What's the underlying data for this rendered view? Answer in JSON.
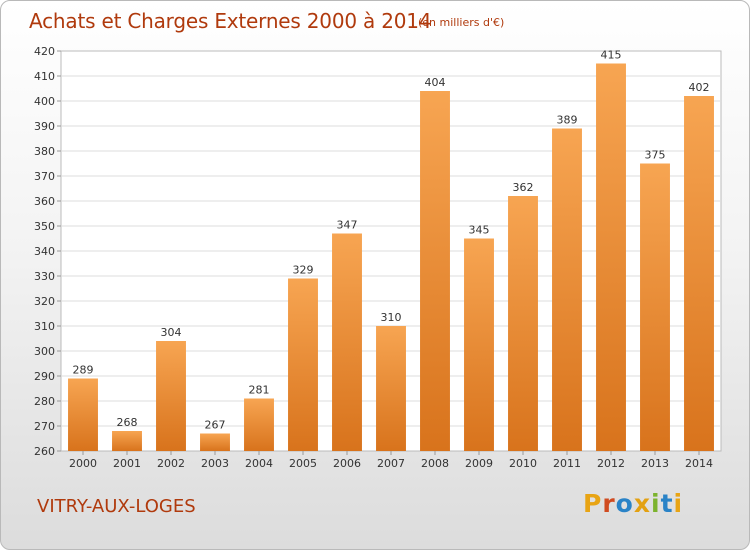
{
  "header": {
    "title": "Achats et Charges Externes 2000 à 2014",
    "unit": "(en milliers d'€)"
  },
  "footer": {
    "commune": "VITRY-AUX-LOGES",
    "logo": "Proxiti"
  },
  "colors": {
    "title": "#b03a0d",
    "bar_light": "#f7a552",
    "bar_dark": "#d8731c",
    "logo_letters": [
      "#e8a414",
      "#d04b20",
      "#2a83c7",
      "#e3a112",
      "#7cb32e",
      "#2a83c7",
      "#e8a414"
    ]
  },
  "chart_data": {
    "type": "bar",
    "title": "Achats et Charges Externes 2000 à 2014",
    "subtitle": "(en milliers d'€)",
    "xlabel": "",
    "ylabel": "",
    "categories": [
      "2000",
      "2001",
      "2002",
      "2003",
      "2004",
      "2005",
      "2006",
      "2007",
      "2008",
      "2009",
      "2010",
      "2011",
      "2012",
      "2013",
      "2014"
    ],
    "values": [
      289,
      268,
      304,
      267,
      281,
      329,
      347,
      310,
      404,
      345,
      362,
      389,
      415,
      375,
      402
    ],
    "ylim": [
      260,
      420
    ],
    "yticks": [
      260,
      270,
      280,
      290,
      300,
      310,
      320,
      330,
      340,
      350,
      360,
      370,
      380,
      390,
      400,
      410,
      420
    ],
    "grid": true,
    "legend": "none"
  }
}
